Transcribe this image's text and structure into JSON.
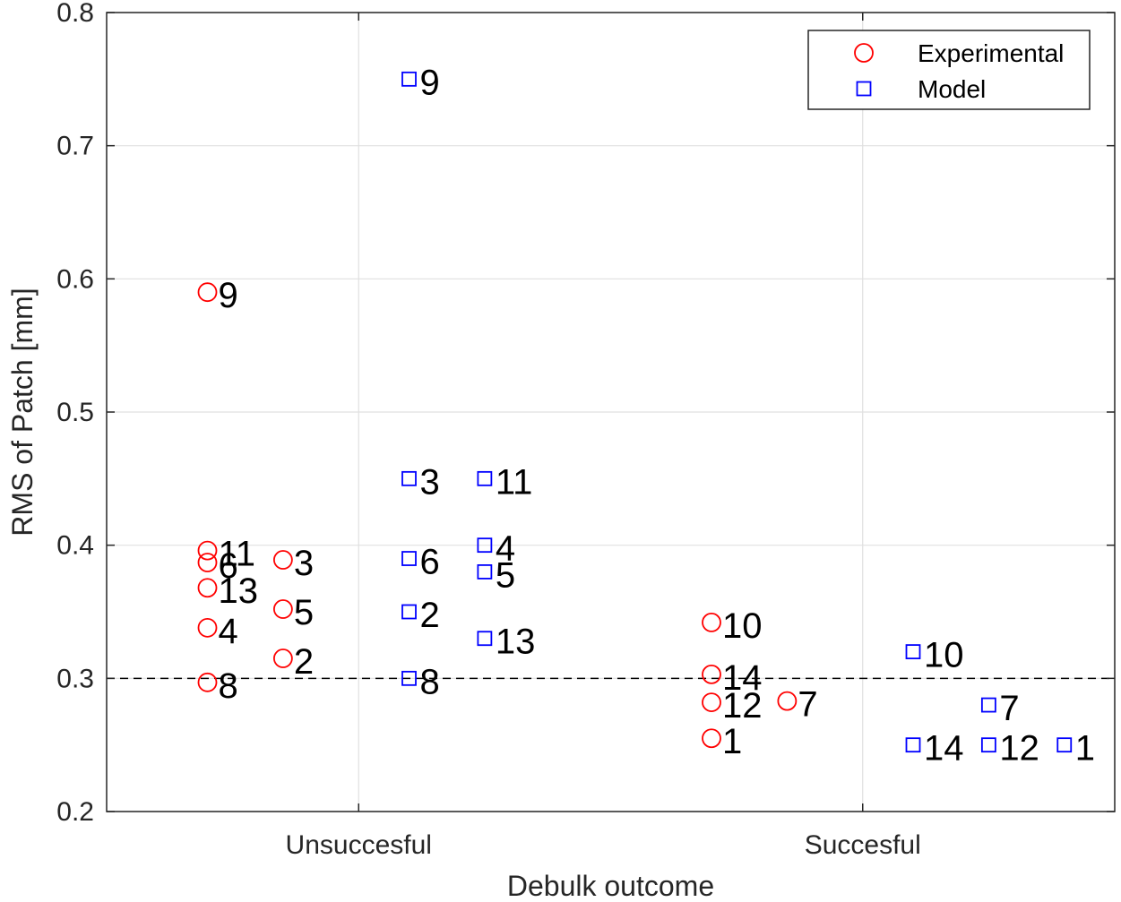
{
  "chart_data": {
    "type": "scatter",
    "xlabel": "Debulk outcome",
    "ylabel": "RMS of Patch [mm]",
    "categories": [
      "Unsuccesful",
      "Succesful"
    ],
    "ylim": [
      0.2,
      0.8
    ],
    "yticks": [
      "0.2",
      "0.3",
      "0.4",
      "0.5",
      "0.6",
      "0.7",
      "0.8"
    ],
    "threshold": 0.3,
    "grid": true,
    "legend_position": "top-right",
    "colors": {
      "Experimental": "#ff0000",
      "Model": "#0000ff",
      "threshold": "#000000",
      "grid": "#e0e0e0"
    },
    "series": [
      {
        "name": "Experimental",
        "marker": "circle",
        "points": [
          {
            "x": 0.7,
            "y": 0.59,
            "label": "9"
          },
          {
            "x": 0.7,
            "y": 0.396,
            "label": "11"
          },
          {
            "x": 0.7,
            "y": 0.387,
            "label": "6"
          },
          {
            "x": 0.7,
            "y": 0.368,
            "label": "13"
          },
          {
            "x": 0.7,
            "y": 0.338,
            "label": "4"
          },
          {
            "x": 0.7,
            "y": 0.297,
            "label": "8"
          },
          {
            "x": 0.85,
            "y": 0.389,
            "label": "3"
          },
          {
            "x": 0.85,
            "y": 0.352,
            "label": "5"
          },
          {
            "x": 0.85,
            "y": 0.315,
            "label": "2"
          },
          {
            "x": 1.7,
            "y": 0.342,
            "label": "10"
          },
          {
            "x": 1.7,
            "y": 0.303,
            "label": "14"
          },
          {
            "x": 1.7,
            "y": 0.282,
            "label": "12"
          },
          {
            "x": 1.7,
            "y": 0.255,
            "label": "1"
          },
          {
            "x": 1.85,
            "y": 0.283,
            "label": "7"
          }
        ]
      },
      {
        "name": "Model",
        "marker": "square",
        "points": [
          {
            "x": 1.1,
            "y": 0.75,
            "label": "9"
          },
          {
            "x": 1.1,
            "y": 0.45,
            "label": "3"
          },
          {
            "x": 1.1,
            "y": 0.39,
            "label": "6"
          },
          {
            "x": 1.1,
            "y": 0.35,
            "label": "2"
          },
          {
            "x": 1.1,
            "y": 0.3,
            "label": "8"
          },
          {
            "x": 1.25,
            "y": 0.45,
            "label": "11"
          },
          {
            "x": 1.25,
            "y": 0.4,
            "label": "4"
          },
          {
            "x": 1.25,
            "y": 0.38,
            "label": "5"
          },
          {
            "x": 1.25,
            "y": 0.33,
            "label": "13"
          },
          {
            "x": 2.1,
            "y": 0.32,
            "label": "10"
          },
          {
            "x": 2.25,
            "y": 0.28,
            "label": "7"
          },
          {
            "x": 2.1,
            "y": 0.25,
            "label": "14"
          },
          {
            "x": 2.25,
            "y": 0.25,
            "label": "12"
          },
          {
            "x": 2.4,
            "y": 0.25,
            "label": "1"
          }
        ]
      }
    ]
  }
}
